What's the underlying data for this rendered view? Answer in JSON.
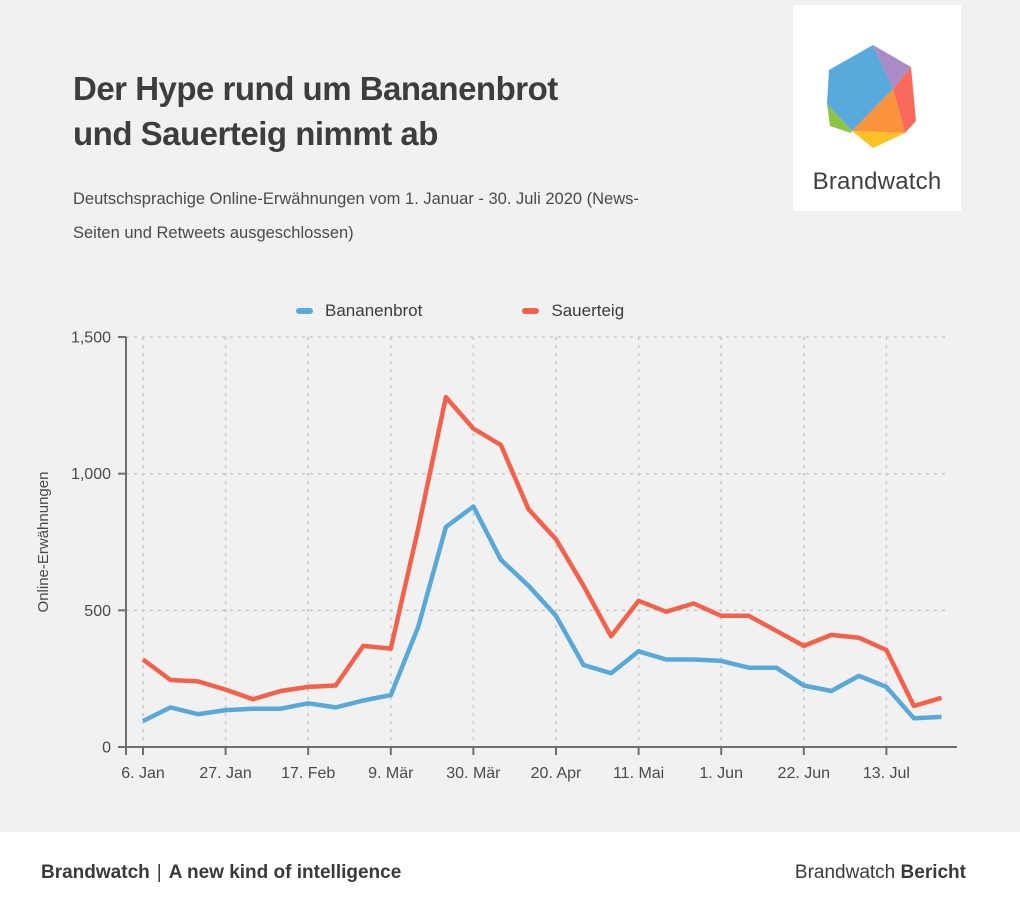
{
  "header": {
    "title_line1": "Der Hype rund um Bananenbrot",
    "title_line2": "und Sauerteig nimmt ab",
    "subtitle_line1": "Deutschsprachige Online-Erwähnungen vom 1. Januar - 30. Juli 2020 (News-",
    "subtitle_line2": "Seiten und Retweets ausgeschlossen)"
  },
  "logo": {
    "wordmark": "Brandwatch",
    "colors": {
      "blue": "#57aadb",
      "purple": "#a98bc5",
      "red": "#fa6a5b",
      "orange": "#f9943d",
      "yellow": "#fcc125",
      "green": "#8bc541"
    }
  },
  "colors": {
    "background": "#f1f1f1",
    "footer_bg": "#ffffff",
    "grid": "#c9c9c9",
    "axis": "#6e6e6e",
    "tick_label": "#4a4a4a"
  },
  "chart_data": {
    "type": "line",
    "ylabel": "Online-Erwähnungen",
    "ylim": [
      0,
      1500
    ],
    "yticks": [
      0,
      500,
      1000,
      1500
    ],
    "ytick_labels": [
      "0",
      "500",
      "1,000",
      "1,500"
    ],
    "xtick_labels": [
      "6. Jan",
      "27. Jan",
      "17. Feb",
      "9. Mär",
      "30. Mär",
      "20. Apr",
      "11. Mai",
      "1. Jun",
      "22. Jun",
      "13. Jul"
    ],
    "points_between_ticks": 3,
    "point_interval": "weekly",
    "grid": "dashed",
    "legend_position": "top",
    "series": [
      {
        "name": "Bananenbrot",
        "color": "#58a9d7",
        "values": [
          95,
          145,
          120,
          135,
          140,
          140,
          160,
          145,
          170,
          190,
          440,
          805,
          880,
          685,
          590,
          480,
          300,
          270,
          350,
          320,
          320,
          315,
          290,
          290,
          225,
          205,
          260,
          220,
          105,
          110
        ]
      },
      {
        "name": "Sauerteig",
        "color": "#f4614b",
        "values": [
          320,
          245,
          240,
          210,
          175,
          205,
          220,
          225,
          370,
          360,
          800,
          1280,
          1165,
          1105,
          870,
          760,
          590,
          405,
          535,
          495,
          525,
          480,
          480,
          425,
          370,
          410,
          400,
          355,
          150,
          180
        ]
      }
    ]
  },
  "footer": {
    "left_brand": "Brandwatch",
    "left_separator": "|",
    "left_tagline": "A new kind of intelligence",
    "right_regular": "Brandwatch",
    "right_bold": "Bericht"
  }
}
